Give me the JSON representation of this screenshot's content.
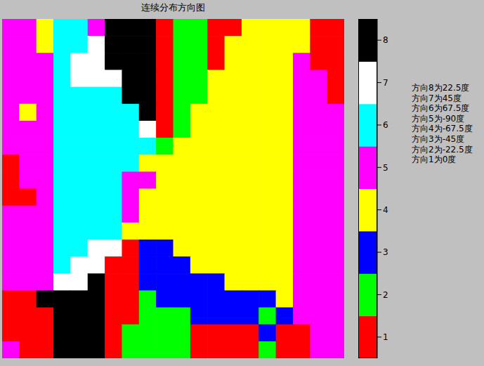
{
  "chart_data": {
    "type": "heatmap",
    "title": "连续分布方向图",
    "xlim": [
      0.5,
      20.5
    ],
    "ylim": [
      0.5,
      20.5
    ],
    "tick_labels": false,
    "cells": [
      [
        5,
        5,
        4,
        6,
        6,
        5,
        8,
        8,
        8,
        1,
        2,
        2,
        1,
        1,
        4,
        4,
        4,
        4,
        1,
        1
      ],
      [
        5,
        5,
        4,
        6,
        6,
        7,
        8,
        8,
        8,
        1,
        2,
        2,
        1,
        4,
        4,
        4,
        4,
        4,
        1,
        1
      ],
      [
        5,
        5,
        5,
        6,
        7,
        7,
        8,
        8,
        8,
        1,
        2,
        2,
        1,
        4,
        4,
        4,
        4,
        5,
        1,
        1
      ],
      [
        5,
        5,
        5,
        6,
        7,
        7,
        7,
        8,
        8,
        1,
        2,
        2,
        4,
        4,
        4,
        4,
        4,
        5,
        5,
        1
      ],
      [
        5,
        5,
        5,
        6,
        6,
        6,
        6,
        8,
        8,
        1,
        2,
        2,
        4,
        4,
        4,
        4,
        4,
        5,
        5,
        1
      ],
      [
        5,
        4,
        5,
        6,
        6,
        6,
        6,
        6,
        8,
        1,
        2,
        4,
        4,
        4,
        4,
        4,
        4,
        5,
        5,
        5
      ],
      [
        5,
        5,
        5,
        6,
        6,
        6,
        6,
        6,
        7,
        1,
        2,
        4,
        4,
        4,
        4,
        4,
        4,
        5,
        5,
        5
      ],
      [
        5,
        5,
        5,
        6,
        6,
        6,
        6,
        6,
        6,
        2,
        4,
        4,
        4,
        4,
        4,
        4,
        4,
        5,
        5,
        5
      ],
      [
        1,
        5,
        5,
        6,
        6,
        6,
        6,
        6,
        4,
        4,
        4,
        4,
        4,
        4,
        4,
        4,
        4,
        5,
        5,
        5
      ],
      [
        1,
        5,
        5,
        6,
        6,
        6,
        6,
        5,
        5,
        4,
        4,
        4,
        4,
        4,
        4,
        4,
        4,
        5,
        5,
        5
      ],
      [
        1,
        1,
        5,
        6,
        6,
        6,
        6,
        5,
        4,
        4,
        4,
        4,
        4,
        4,
        4,
        4,
        4,
        5,
        5,
        5
      ],
      [
        5,
        5,
        5,
        6,
        6,
        6,
        6,
        5,
        4,
        4,
        4,
        4,
        4,
        4,
        4,
        4,
        4,
        5,
        5,
        5
      ],
      [
        5,
        5,
        5,
        6,
        6,
        6,
        6,
        4,
        4,
        4,
        4,
        4,
        4,
        4,
        4,
        4,
        4,
        5,
        5,
        5
      ],
      [
        5,
        5,
        5,
        6,
        6,
        7,
        7,
        1,
        3,
        3,
        4,
        4,
        4,
        4,
        4,
        4,
        4,
        5,
        5,
        5
      ],
      [
        5,
        5,
        5,
        6,
        7,
        7,
        1,
        1,
        3,
        3,
        3,
        4,
        4,
        4,
        4,
        4,
        4,
        5,
        5,
        5
      ],
      [
        5,
        5,
        5,
        7,
        7,
        8,
        1,
        1,
        3,
        3,
        3,
        3,
        3,
        4,
        4,
        4,
        4,
        5,
        5,
        5
      ],
      [
        1,
        1,
        8,
        8,
        8,
        8,
        1,
        1,
        2,
        3,
        3,
        3,
        3,
        3,
        3,
        3,
        4,
        5,
        5,
        5
      ],
      [
        1,
        1,
        1,
        8,
        8,
        8,
        1,
        1,
        2,
        2,
        2,
        3,
        3,
        3,
        3,
        2,
        3,
        5,
        5,
        5
      ],
      [
        1,
        1,
        1,
        8,
        8,
        8,
        1,
        2,
        2,
        2,
        2,
        1,
        1,
        1,
        1,
        3,
        1,
        1,
        5,
        5
      ],
      [
        5,
        1,
        1,
        8,
        8,
        8,
        1,
        2,
        2,
        2,
        2,
        1,
        1,
        1,
        1,
        2,
        1,
        1,
        5,
        5
      ]
    ],
    "colorbar": {
      "range": [
        0.5,
        8.5
      ],
      "ticks": [
        1,
        2,
        3,
        4,
        5,
        6,
        7,
        8
      ],
      "colors": [
        "#ff0000",
        "#00ff00",
        "#0000ff",
        "#ffff00",
        "#ff00ff",
        "#00ffff",
        "#ffffff",
        "#000000"
      ]
    },
    "annotations": [
      "方向8为22.5度",
      "方向7为45度",
      "方向6为67.5度",
      "方向5为-90度",
      "方向4为-67.5度",
      "方向3为-45度",
      "方向2为-22.5度",
      "方向1为0度"
    ]
  }
}
